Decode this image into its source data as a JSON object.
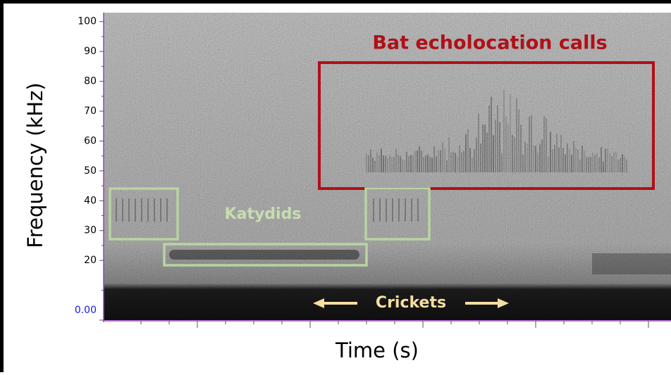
{
  "chart_data": {
    "type": "spectrogram",
    "y_label": "Frequency (kHz)",
    "x_label": "Time (s)",
    "ylim": [
      0,
      103
    ],
    "yticks": [
      {
        "value": 0,
        "label": "0.00"
      },
      20,
      30,
      40,
      50,
      60,
      70,
      80,
      90,
      100
    ],
    "annotations": {
      "bats": "Bat echolocation calls",
      "katydids": "Katydids",
      "crickets": "Crickets"
    }
  }
}
